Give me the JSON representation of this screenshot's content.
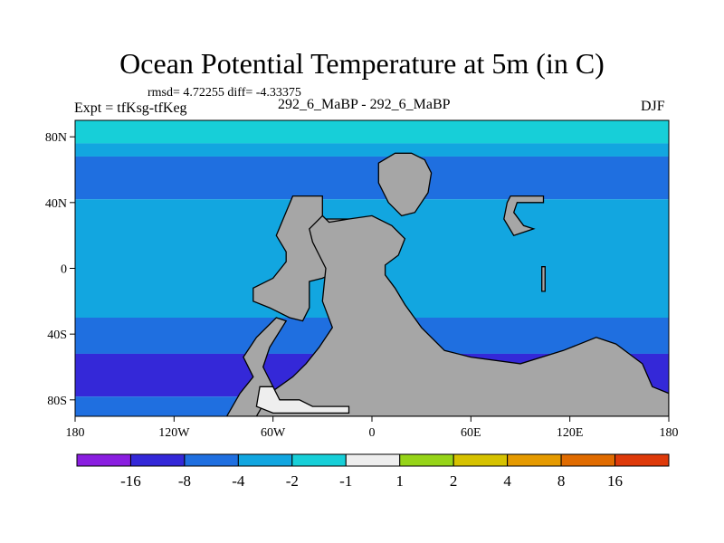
{
  "header": {
    "title": "Ocean Potential Temperature at 5m (in C)",
    "stats": "rmsd= 4.72255 diff= -4.33375",
    "left_label": "Expt = tfKsg-tfKeg",
    "center_label": "292_6_MaBP - 292_6_MaBP",
    "right_label": "DJF"
  },
  "colors": {
    "land": "#a6a6a6",
    "outline": "#000000"
  },
  "chart_data": {
    "type": "heatmap",
    "title": "Ocean Potential Temperature at 5m (in C)",
    "xlabel": "",
    "ylabel": "",
    "xlim": [
      -180,
      180
    ],
    "ylim": [
      -90,
      90
    ],
    "x_ticks": [
      {
        "value": -180,
        "label": "180"
      },
      {
        "value": -120,
        "label": "120W"
      },
      {
        "value": -60,
        "label": "60W"
      },
      {
        "value": 0,
        "label": "0"
      },
      {
        "value": 60,
        "label": "60E"
      },
      {
        "value": 120,
        "label": "120E"
      },
      {
        "value": 180,
        "label": "180"
      }
    ],
    "y_ticks": [
      {
        "value": 80,
        "label": "80N"
      },
      {
        "value": 40,
        "label": "40N"
      },
      {
        "value": 0,
        "label": "0"
      },
      {
        "value": -40,
        "label": "40S"
      },
      {
        "value": -80,
        "label": "80S"
      }
    ],
    "colorbar": {
      "colors": [
        "#8a1ee0",
        "#3428d8",
        "#1f6fe0",
        "#12a6e0",
        "#17cfd8",
        "#eeeeee",
        "#96d418",
        "#d6c200",
        "#e59a00",
        "#e06b00",
        "#de3a0a"
      ],
      "labels": [
        "-16",
        "-8",
        "-4",
        "-2",
        "-1",
        "1",
        "2",
        "4",
        "8",
        "16"
      ]
    },
    "field_bands": [
      {
        "lat_top": 90,
        "lat_bottom": 76,
        "color_index": 4
      },
      {
        "lat_top": 76,
        "lat_bottom": 68,
        "color_index": 3
      },
      {
        "lat_top": 68,
        "lat_bottom": 42,
        "color_index": 2
      },
      {
        "lat_top": 42,
        "lat_bottom": -30,
        "color_index": 3
      },
      {
        "lat_top": -30,
        "lat_bottom": -52,
        "color_index": 2
      },
      {
        "lat_top": -52,
        "lat_bottom": -78,
        "color_index": 1
      },
      {
        "lat_top": -78,
        "lat_bottom": -90,
        "color_index": 2
      }
    ],
    "land_regions": [
      {
        "name": "americas",
        "points": [
          [
            -48,
            44
          ],
          [
            -30,
            44
          ],
          [
            -30,
            30
          ],
          [
            -14,
            30
          ],
          [
            -10,
            20
          ],
          [
            -6,
            10
          ],
          [
            -12,
            2
          ],
          [
            -30,
            -6
          ],
          [
            -38,
            -8
          ],
          [
            -38,
            -24
          ],
          [
            -42,
            -32
          ],
          [
            -50,
            -30
          ],
          [
            -62,
            -24
          ],
          [
            -72,
            -20
          ],
          [
            -72,
            -12
          ],
          [
            -60,
            -6
          ],
          [
            -52,
            4
          ],
          [
            -52,
            10
          ],
          [
            -58,
            20
          ]
        ]
      },
      {
        "name": "antarctic-arm",
        "points": [
          [
            -72,
            -66
          ],
          [
            -78,
            -54
          ],
          [
            -70,
            -42
          ],
          [
            -58,
            -30
          ],
          [
            -52,
            -32
          ],
          [
            -62,
            -48
          ],
          [
            -66,
            -60
          ],
          [
            -62,
            -68
          ],
          [
            -58,
            -76
          ],
          [
            -68,
            -90
          ],
          [
            -88,
            -90
          ],
          [
            -80,
            -76
          ]
        ]
      },
      {
        "name": "greenland",
        "points": [
          [
            4,
            64
          ],
          [
            14,
            70
          ],
          [
            24,
            70
          ],
          [
            32,
            66
          ],
          [
            36,
            58
          ],
          [
            34,
            46
          ],
          [
            26,
            34
          ],
          [
            18,
            32
          ],
          [
            10,
            40
          ],
          [
            4,
            52
          ]
        ]
      },
      {
        "name": "eurasia-africa",
        "points": [
          [
            -30,
            32
          ],
          [
            -26,
            28
          ],
          [
            -14,
            30
          ],
          [
            0,
            32
          ],
          [
            12,
            26
          ],
          [
            20,
            18
          ],
          [
            16,
            8
          ],
          [
            8,
            2
          ],
          [
            8,
            -4
          ],
          [
            14,
            -12
          ],
          [
            20,
            -22
          ],
          [
            30,
            -36
          ],
          [
            44,
            -50
          ],
          [
            60,
            -54
          ],
          [
            90,
            -58
          ],
          [
            116,
            -50
          ],
          [
            136,
            -42
          ],
          [
            148,
            -46
          ],
          [
            164,
            -58
          ],
          [
            170,
            -72
          ],
          [
            180,
            -76
          ],
          [
            180,
            -90
          ],
          [
            -70,
            -90
          ],
          [
            -62,
            -76
          ],
          [
            -48,
            -66
          ],
          [
            -40,
            -58
          ],
          [
            -32,
            -48
          ],
          [
            -24,
            -36
          ],
          [
            -30,
            -20
          ],
          [
            -28,
            0
          ],
          [
            -36,
            16
          ],
          [
            -38,
            24
          ]
        ]
      },
      {
        "name": "east-land",
        "points": [
          [
            84,
            44
          ],
          [
            104,
            44
          ],
          [
            104,
            40
          ],
          [
            88,
            40
          ],
          [
            86,
            34
          ],
          [
            92,
            26
          ],
          [
            98,
            24
          ],
          [
            86,
            20
          ],
          [
            80,
            30
          ],
          [
            82,
            40
          ]
        ]
      },
      {
        "name": "small-island",
        "points": [
          [
            103,
            1
          ],
          [
            105,
            1
          ],
          [
            105,
            -14
          ],
          [
            103,
            -14
          ]
        ]
      },
      {
        "name": "polar-ice",
        "points": [
          [
            -68,
            -72
          ],
          [
            -60,
            -72
          ],
          [
            -56,
            -80
          ],
          [
            -44,
            -80
          ],
          [
            -36,
            -84
          ],
          [
            -14,
            -84
          ],
          [
            -14,
            -88
          ],
          [
            -60,
            -88
          ],
          [
            -70,
            -84
          ]
        ]
      }
    ]
  }
}
